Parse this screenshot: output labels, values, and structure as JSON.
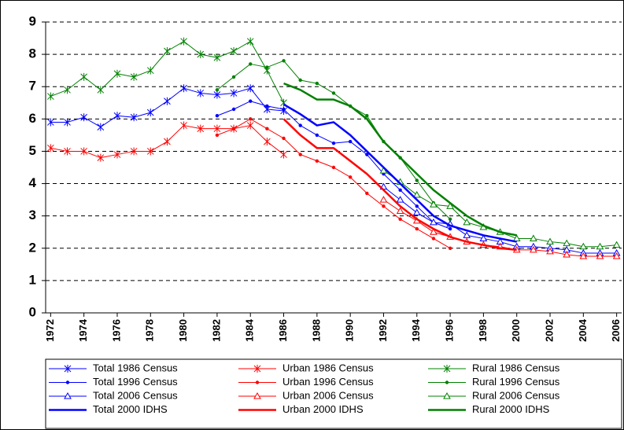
{
  "chart_data": {
    "type": "line",
    "x": [
      1972,
      1973,
      1974,
      1975,
      1976,
      1977,
      1978,
      1979,
      1980,
      1981,
      1982,
      1983,
      1984,
      1985,
      1986,
      1987,
      1988,
      1989,
      1990,
      1991,
      1992,
      1993,
      1994,
      1995,
      1996,
      1997,
      1998,
      1999,
      2000,
      2001,
      2002,
      2003,
      2004,
      2005,
      2006
    ],
    "xlim": [
      1971.7,
      2006.3
    ],
    "xticks": [
      1972,
      1974,
      1976,
      1978,
      1980,
      1982,
      1984,
      1986,
      1988,
      1990,
      1992,
      1994,
      1996,
      1998,
      2000,
      2002,
      2004,
      2006
    ],
    "ylim": [
      0,
      9
    ],
    "yticks": [
      0,
      1,
      2,
      3,
      4,
      5,
      6,
      7,
      8,
      9
    ],
    "grid": true,
    "legend": "bottom",
    "series": [
      {
        "name": "Total 1986 Census",
        "color": "#0000ff",
        "marker": "asterisk",
        "width": 1,
        "values": [
          5.9,
          5.9,
          6.05,
          5.75,
          6.1,
          6.05,
          6.2,
          6.55,
          6.95,
          6.8,
          6.75,
          6.8,
          6.95,
          6.3,
          6.25,
          null,
          null,
          null,
          null,
          null,
          null,
          null,
          null,
          null,
          null,
          null,
          null,
          null,
          null,
          null,
          null,
          null,
          null,
          null,
          null
        ]
      },
      {
        "name": "Urban 1986 Census",
        "color": "#ff0000",
        "marker": "asterisk",
        "width": 1,
        "values": [
          5.1,
          5.0,
          5.0,
          4.8,
          4.9,
          5.0,
          5.0,
          5.3,
          5.8,
          5.7,
          5.7,
          5.7,
          5.8,
          5.3,
          4.9,
          null,
          null,
          null,
          null,
          null,
          null,
          null,
          null,
          null,
          null,
          null,
          null,
          null,
          null,
          null,
          null,
          null,
          null,
          null,
          null
        ]
      },
      {
        "name": "Rural 1986 Census",
        "color": "#008000",
        "marker": "asterisk",
        "width": 1,
        "values": [
          6.7,
          6.9,
          7.3,
          6.9,
          7.4,
          7.3,
          7.5,
          8.1,
          8.4,
          8.0,
          7.9,
          8.1,
          8.4,
          7.5,
          6.5,
          null,
          null,
          null,
          null,
          null,
          null,
          null,
          null,
          null,
          null,
          null,
          null,
          null,
          null,
          null,
          null,
          null,
          null,
          null,
          null
        ]
      },
      {
        "name": "Total 1996 Census",
        "color": "#0000ff",
        "marker": "dot",
        "width": 1,
        "values": [
          null,
          null,
          null,
          null,
          null,
          null,
          null,
          null,
          null,
          null,
          6.1,
          6.3,
          6.55,
          6.4,
          6.3,
          5.8,
          5.5,
          5.25,
          5.3,
          4.9,
          4.3,
          3.8,
          3.3,
          2.8,
          2.6,
          null,
          null,
          null,
          null,
          null,
          null,
          null,
          null,
          null,
          null
        ]
      },
      {
        "name": "Urban 1996 Census",
        "color": "#ff0000",
        "marker": "dot",
        "width": 1,
        "values": [
          null,
          null,
          null,
          null,
          null,
          null,
          null,
          null,
          null,
          null,
          5.5,
          5.7,
          6.0,
          5.7,
          5.4,
          4.9,
          4.7,
          4.5,
          4.2,
          3.7,
          3.3,
          2.9,
          2.6,
          2.3,
          2.0,
          null,
          null,
          null,
          null,
          null,
          null,
          null,
          null,
          null,
          null
        ]
      },
      {
        "name": "Rural 1996 Census",
        "color": "#008000",
        "marker": "dot",
        "width": 1,
        "values": [
          null,
          null,
          null,
          null,
          null,
          null,
          null,
          null,
          null,
          null,
          6.9,
          7.3,
          7.7,
          7.6,
          7.8,
          7.2,
          7.1,
          6.8,
          6.4,
          6.1,
          5.3,
          4.8,
          4.1,
          3.4,
          2.9,
          null,
          null,
          null,
          null,
          null,
          null,
          null,
          null,
          null,
          null
        ]
      },
      {
        "name": "Total 2006 Census",
        "color": "#0000ff",
        "marker": "triangle",
        "width": 1,
        "values": [
          null,
          null,
          null,
          null,
          null,
          null,
          null,
          null,
          null,
          null,
          null,
          null,
          null,
          null,
          null,
          null,
          null,
          null,
          null,
          null,
          3.9,
          3.5,
          3.1,
          2.8,
          2.75,
          2.4,
          2.3,
          2.2,
          2.05,
          2.05,
          2.0,
          1.95,
          1.85,
          1.85,
          1.85
        ]
      },
      {
        "name": "Urban 2006 Census",
        "color": "#ff0000",
        "marker": "triangle",
        "width": 1,
        "values": [
          null,
          null,
          null,
          null,
          null,
          null,
          null,
          null,
          null,
          null,
          null,
          null,
          null,
          null,
          null,
          null,
          null,
          null,
          null,
          null,
          3.5,
          3.15,
          2.85,
          2.5,
          2.35,
          2.2,
          2.1,
          2.05,
          1.95,
          1.95,
          1.9,
          1.8,
          1.75,
          1.75,
          1.75
        ]
      },
      {
        "name": "Rural 2006 Census",
        "color": "#008000",
        "marker": "triangle",
        "width": 1,
        "values": [
          null,
          null,
          null,
          null,
          null,
          null,
          null,
          null,
          null,
          null,
          null,
          null,
          null,
          null,
          null,
          null,
          null,
          null,
          null,
          null,
          4.4,
          4.05,
          3.65,
          3.35,
          3.3,
          2.8,
          2.65,
          2.5,
          2.3,
          2.3,
          2.2,
          2.15,
          2.05,
          2.05,
          2.1
        ]
      },
      {
        "name": "Total 2000 IDHS",
        "color": "#0000ff",
        "marker": "none",
        "width": 2.5,
        "values": [
          null,
          null,
          null,
          null,
          null,
          null,
          null,
          null,
          null,
          null,
          null,
          null,
          null,
          null,
          6.45,
          6.15,
          5.8,
          5.9,
          5.5,
          5.0,
          4.5,
          4.0,
          3.5,
          3.0,
          2.7,
          2.55,
          2.4,
          2.3,
          2.2,
          null,
          null,
          null,
          null,
          null,
          null
        ]
      },
      {
        "name": "Urban 2000 IDHS",
        "color": "#ff0000",
        "marker": "none",
        "width": 2.5,
        "values": [
          null,
          null,
          null,
          null,
          null,
          null,
          null,
          null,
          null,
          null,
          null,
          null,
          null,
          null,
          6.0,
          5.5,
          5.1,
          5.1,
          4.7,
          4.3,
          3.8,
          3.3,
          2.9,
          2.6,
          2.35,
          2.2,
          2.1,
          2.0,
          1.95,
          null,
          null,
          null,
          null,
          null,
          null
        ]
      },
      {
        "name": "Rural 2000 IDHS",
        "color": "#008000",
        "marker": "none",
        "width": 2.5,
        "values": [
          null,
          null,
          null,
          null,
          null,
          null,
          null,
          null,
          null,
          null,
          null,
          null,
          null,
          null,
          7.1,
          6.9,
          6.6,
          6.6,
          6.4,
          6.0,
          5.3,
          4.8,
          4.3,
          3.8,
          3.4,
          3.0,
          2.7,
          2.5,
          2.4,
          null,
          null,
          null,
          null,
          null,
          null
        ]
      }
    ]
  }
}
